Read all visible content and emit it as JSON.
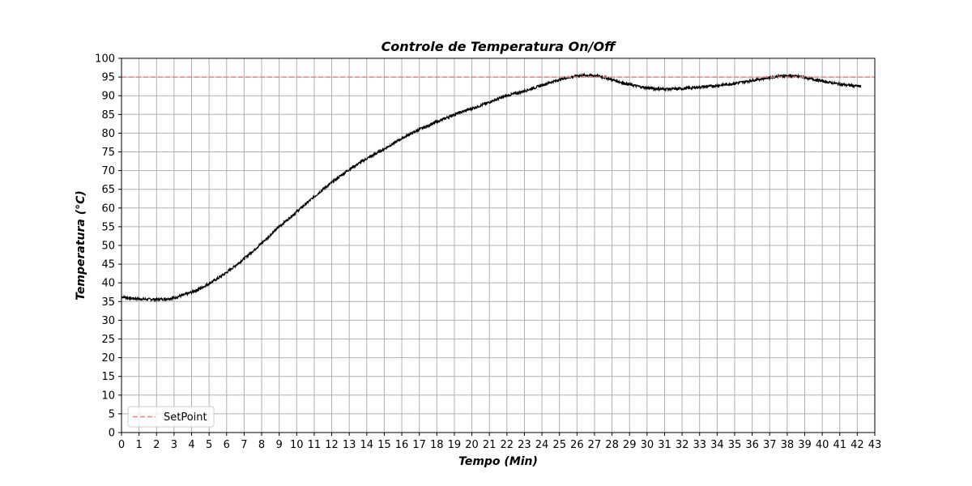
{
  "chart_data": {
    "type": "line",
    "title": "Controle de Temperatura On/Off",
    "xlabel": "Tempo (Min)",
    "ylabel": "Temperatura (°C)",
    "xlim": [
      0,
      43
    ],
    "ylim": [
      0,
      100
    ],
    "x_ticks": [
      "0",
      "1",
      "2",
      "3",
      "4",
      "5",
      "6",
      "7",
      "8",
      "9",
      "10",
      "11",
      "12",
      "13",
      "14",
      "15",
      "16",
      "17",
      "18",
      "19",
      "20",
      "21",
      "22",
      "23",
      "24",
      "25",
      "26",
      "27",
      "28",
      "29",
      "30",
      "31",
      "32",
      "33",
      "34",
      "35",
      "36",
      "37",
      "38",
      "39",
      "40",
      "41",
      "42",
      "43"
    ],
    "y_ticks": [
      "0",
      "5",
      "10",
      "15",
      "20",
      "25",
      "30",
      "35",
      "40",
      "45",
      "50",
      "55",
      "60",
      "65",
      "70",
      "75",
      "80",
      "85",
      "90",
      "95",
      "100"
    ],
    "grid": true,
    "legend_position": "lower-left",
    "series": [
      {
        "color": "#000000",
        "style": "solid",
        "x": [
          0,
          0.5,
          1,
          1.5,
          2,
          2.5,
          3,
          3.5,
          4,
          4.5,
          5,
          5.5,
          6,
          6.5,
          7,
          7.5,
          8,
          8.5,
          9,
          9.5,
          10,
          10.5,
          11,
          11.5,
          12,
          12.5,
          13,
          13.5,
          14,
          14.5,
          15,
          15.5,
          16,
          16.5,
          17,
          17.5,
          18,
          18.5,
          19,
          19.5,
          20,
          20.5,
          21,
          21.5,
          22,
          22.5,
          23,
          23.5,
          24,
          24.5,
          25,
          25.5,
          26,
          26.5,
          27,
          27.5,
          28,
          28.5,
          29,
          29.5,
          30,
          30.5,
          31,
          31.5,
          32,
          32.5,
          33,
          33.5,
          34,
          34.5,
          35,
          35.5,
          36,
          36.5,
          37,
          37.5,
          38,
          38.5,
          39,
          39.5,
          40,
          40.5,
          41,
          41.5,
          42,
          42.2
        ],
        "y": [
          36.3,
          35.9,
          35.7,
          35.6,
          35.6,
          35.7,
          36.0,
          36.7,
          37.5,
          38.5,
          39.8,
          41.2,
          42.8,
          44.6,
          46.5,
          48.5,
          50.6,
          52.8,
          55.0,
          57.0,
          59.0,
          61.0,
          63.0,
          65.0,
          66.8,
          68.6,
          70.3,
          71.8,
          73.2,
          74.5,
          75.8,
          77.2,
          78.6,
          79.8,
          81.0,
          82.0,
          83.0,
          84.0,
          85.0,
          85.8,
          86.6,
          87.4,
          88.3,
          89.2,
          90.0,
          90.6,
          91.3,
          92.0,
          92.8,
          93.6,
          94.3,
          94.9,
          95.3,
          95.5,
          95.4,
          95.0,
          94.3,
          93.6,
          93.0,
          92.5,
          92.1,
          91.9,
          91.8,
          91.8,
          91.9,
          92.1,
          92.3,
          92.5,
          92.7,
          93.0,
          93.3,
          93.7,
          94.1,
          94.5,
          94.9,
          95.2,
          95.3,
          95.2,
          94.9,
          94.4,
          93.9,
          93.5,
          93.1,
          92.8,
          92.6,
          92.5
        ]
      },
      {
        "name": "SetPoint",
        "color": "#f08080",
        "style": "dashed",
        "x": [
          0,
          43
        ],
        "y": [
          95,
          95
        ]
      }
    ]
  }
}
